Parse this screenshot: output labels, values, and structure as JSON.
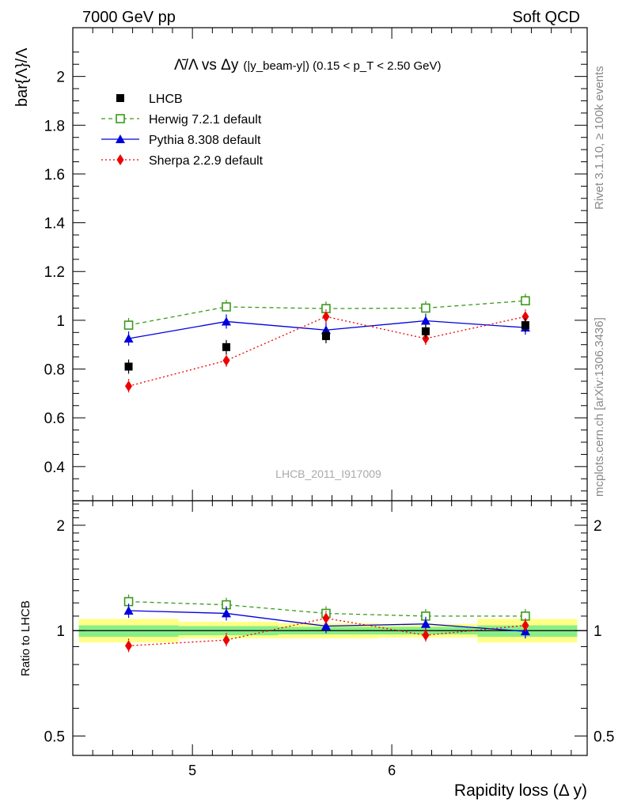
{
  "header": {
    "left": "7000 GeV pp",
    "right": "Soft QCD"
  },
  "side": {
    "rivet": "Rivet 3.1.10, ≥ 100k events",
    "mcplots": "mcplots.cern.ch [arXiv:1306.3436]"
  },
  "main_panel": {
    "title_main": "Λ̄/Λ vs Δy",
    "title_sub": "(|y_beam-y|) (0.15 < p_T < 2.50 GeV)",
    "ylabel": "bar{Λ}/Λ",
    "watermark": "LHCB_2011_I917009"
  },
  "ratio_panel": {
    "ylabel": "Ratio to LHCB"
  },
  "colors": {
    "lhcb": "#000000",
    "herwig": "#3a9a1a",
    "pythia": "#0000dd",
    "sherpa": "#ee0000",
    "band_outer": "#ffff88",
    "band_inner": "#88ee88"
  },
  "chart_data": [
    {
      "type": "scatter",
      "name": "main",
      "title": "Λ̄/Λ vs Δy (|y_beam-y|) (0.15 < p_T < 2.50 GeV)",
      "xlabel": "Rapidity loss (Δ y)",
      "ylabel": "bar{Λ}/Λ",
      "xlim": [
        4.4,
        6.98
      ],
      "ylim": [
        0.26,
        2.2
      ],
      "x_ticks": [
        5,
        6
      ],
      "y_ticks": [
        0.4,
        0.6,
        0.8,
        1,
        1.2,
        1.4,
        1.6,
        1.8,
        2
      ],
      "legend_position": "top-left",
      "x": [
        4.68,
        5.17,
        5.67,
        6.17,
        6.67
      ],
      "series": [
        {
          "name": "LHCB",
          "values": [
            0.81,
            0.89,
            0.935,
            0.955,
            0.98
          ]
        },
        {
          "name": "Herwig 7.2.1 default",
          "values": [
            0.98,
            1.055,
            1.048,
            1.05,
            1.08
          ]
        },
        {
          "name": "Pythia 8.308 default",
          "values": [
            0.925,
            0.995,
            0.96,
            0.998,
            0.97
          ]
        },
        {
          "name": "Sherpa 2.2.9 default",
          "values": [
            0.73,
            0.835,
            1.015,
            0.925,
            1.015
          ]
        }
      ]
    },
    {
      "type": "scatter",
      "name": "ratio",
      "xlabel": "Rapidity loss (Δ y)",
      "ylabel": "Ratio to LHCB",
      "ylim": [
        0.44,
        2.35
      ],
      "y_scale": "log",
      "y_ticks": [
        0.5,
        1,
        2
      ],
      "x": [
        4.68,
        5.17,
        5.67,
        6.17,
        6.67
      ],
      "band_bins": [
        4.43,
        4.93,
        5.43,
        5.93,
        6.43,
        6.93
      ],
      "band_outer": [
        [
          0.925,
          1.08
        ],
        [
          0.95,
          1.06
        ],
        [
          0.95,
          1.05
        ],
        [
          0.955,
          1.045
        ],
        [
          0.925,
          1.08
        ]
      ],
      "band_inner": [
        [
          0.96,
          1.035
        ],
        [
          0.97,
          1.03
        ],
        [
          0.975,
          1.025
        ],
        [
          0.975,
          1.025
        ],
        [
          0.96,
          1.035
        ]
      ],
      "series": [
        {
          "name": "Herwig 7.2.1 default",
          "values": [
            1.21,
            1.185,
            1.12,
            1.1,
            1.1
          ]
        },
        {
          "name": "Pythia 8.308 default",
          "values": [
            1.14,
            1.12,
            1.03,
            1.045,
            0.995
          ]
        },
        {
          "name": "Sherpa 2.2.9 default",
          "values": [
            0.905,
            0.94,
            1.085,
            0.97,
            1.035
          ]
        }
      ]
    }
  ]
}
